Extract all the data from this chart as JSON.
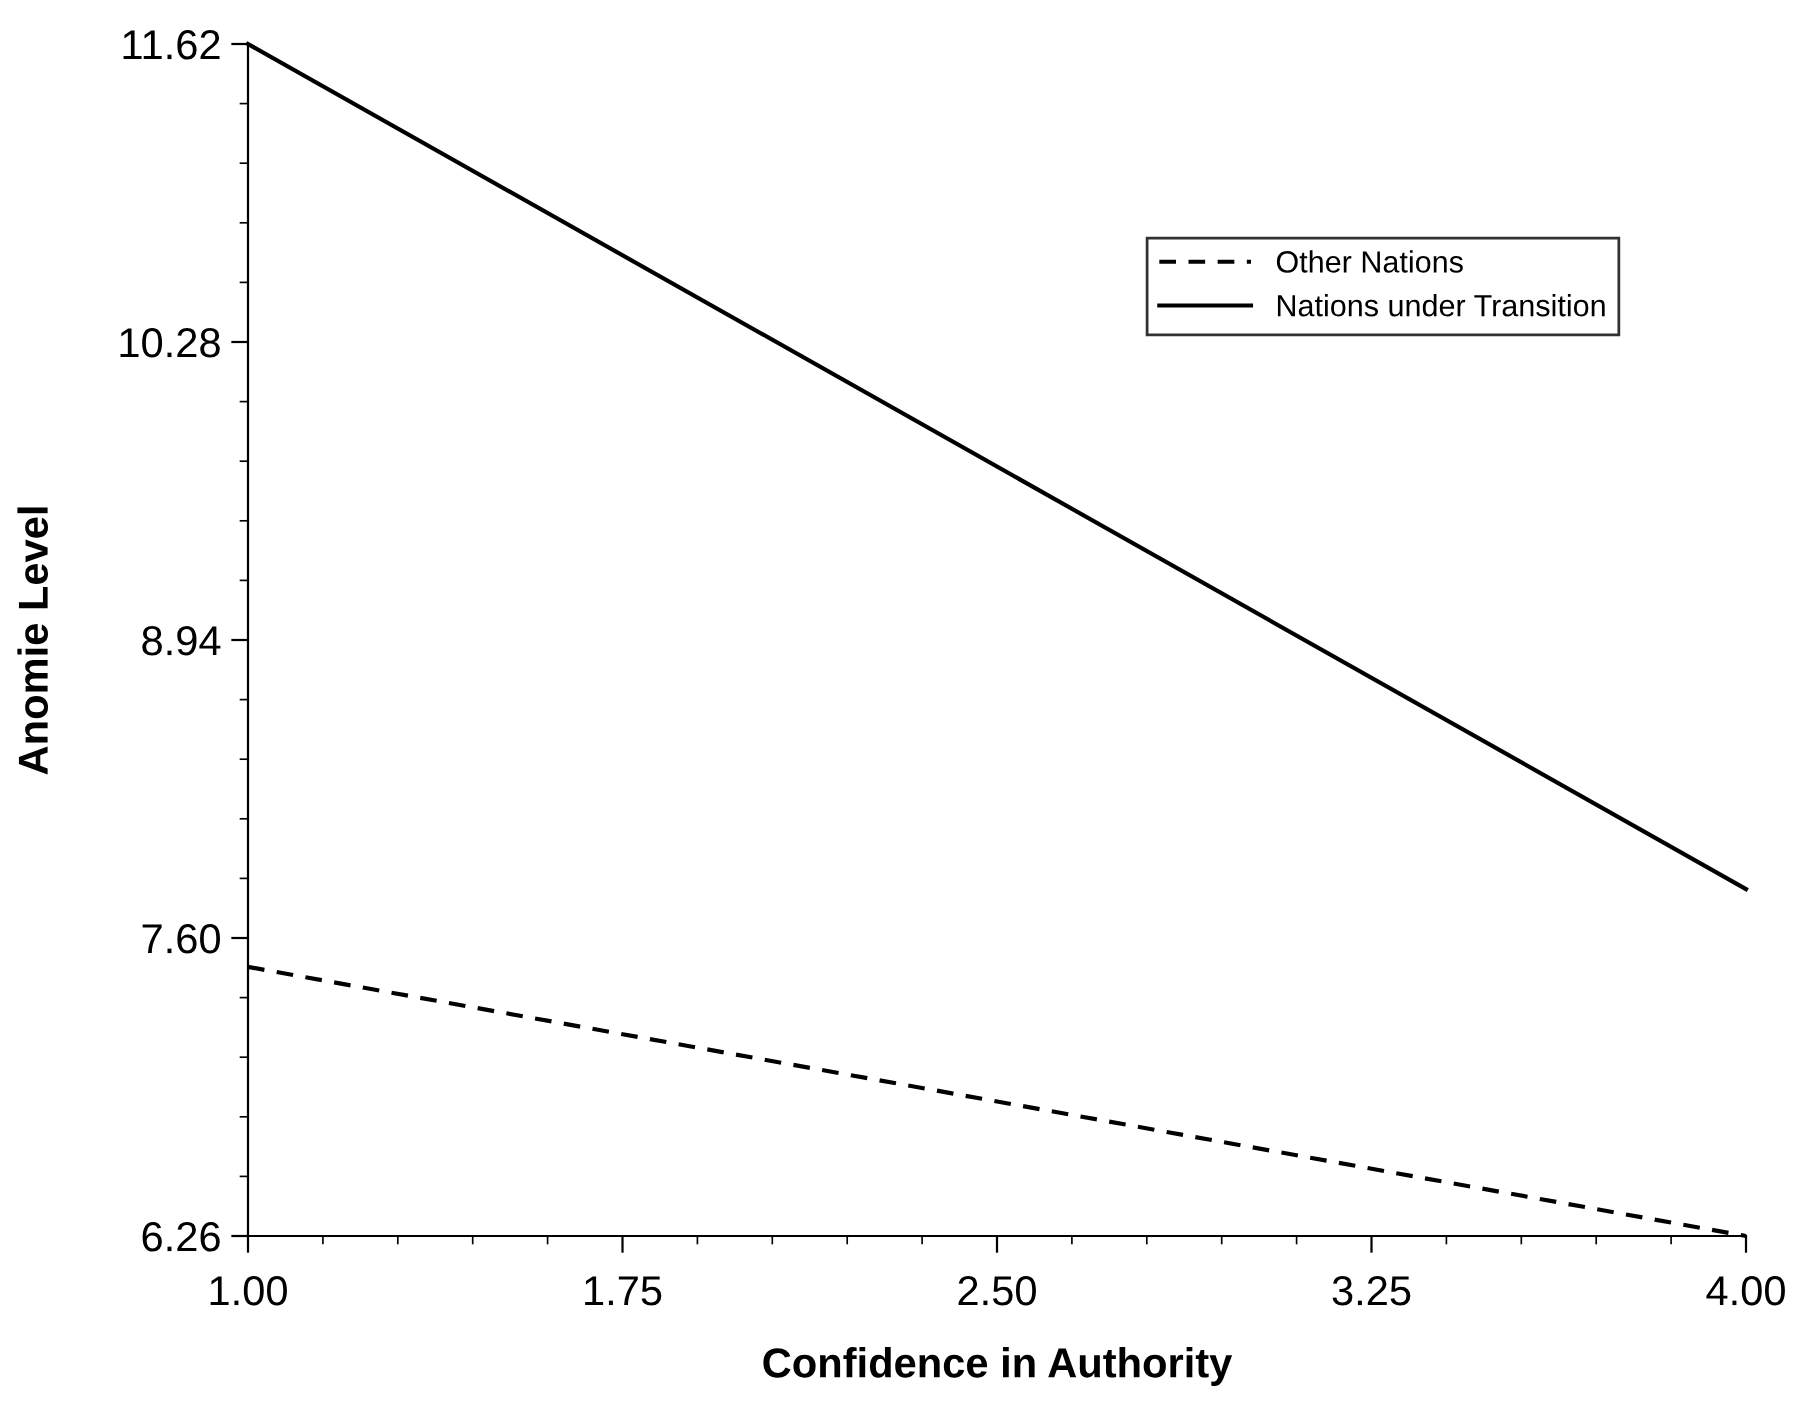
{
  "chart_data": {
    "type": "line",
    "xlabel": "Confidence in Authority",
    "ylabel": "Anomie Level",
    "x": [
      1.0,
      4.0
    ],
    "series": [
      {
        "name": "Other Nations",
        "color": "#000000",
        "line_style": "dashed",
        "values": [
          7.47,
          6.26
        ]
      },
      {
        "name": "Nations under Transition",
        "color": "#000000",
        "line_style": "solid",
        "values": [
          11.62,
          7.82
        ]
      }
    ],
    "xlim": [
      1.0,
      4.0
    ],
    "xticks": [
      {
        "value": 1.0,
        "label": "1.00"
      },
      1.75,
      {
        "value": 2.5,
        "label": "2.50"
      },
      3.25,
      {
        "value": 4.0,
        "label": "4.00"
      }
    ],
    "ylim": [
      6.26,
      11.62
    ],
    "yticks": [
      6.26,
      {
        "value": 7.6,
        "label": "7.60"
      },
      8.94,
      10.28,
      11.62
    ],
    "grid": false,
    "legend": "top right",
    "marker": "none"
  }
}
